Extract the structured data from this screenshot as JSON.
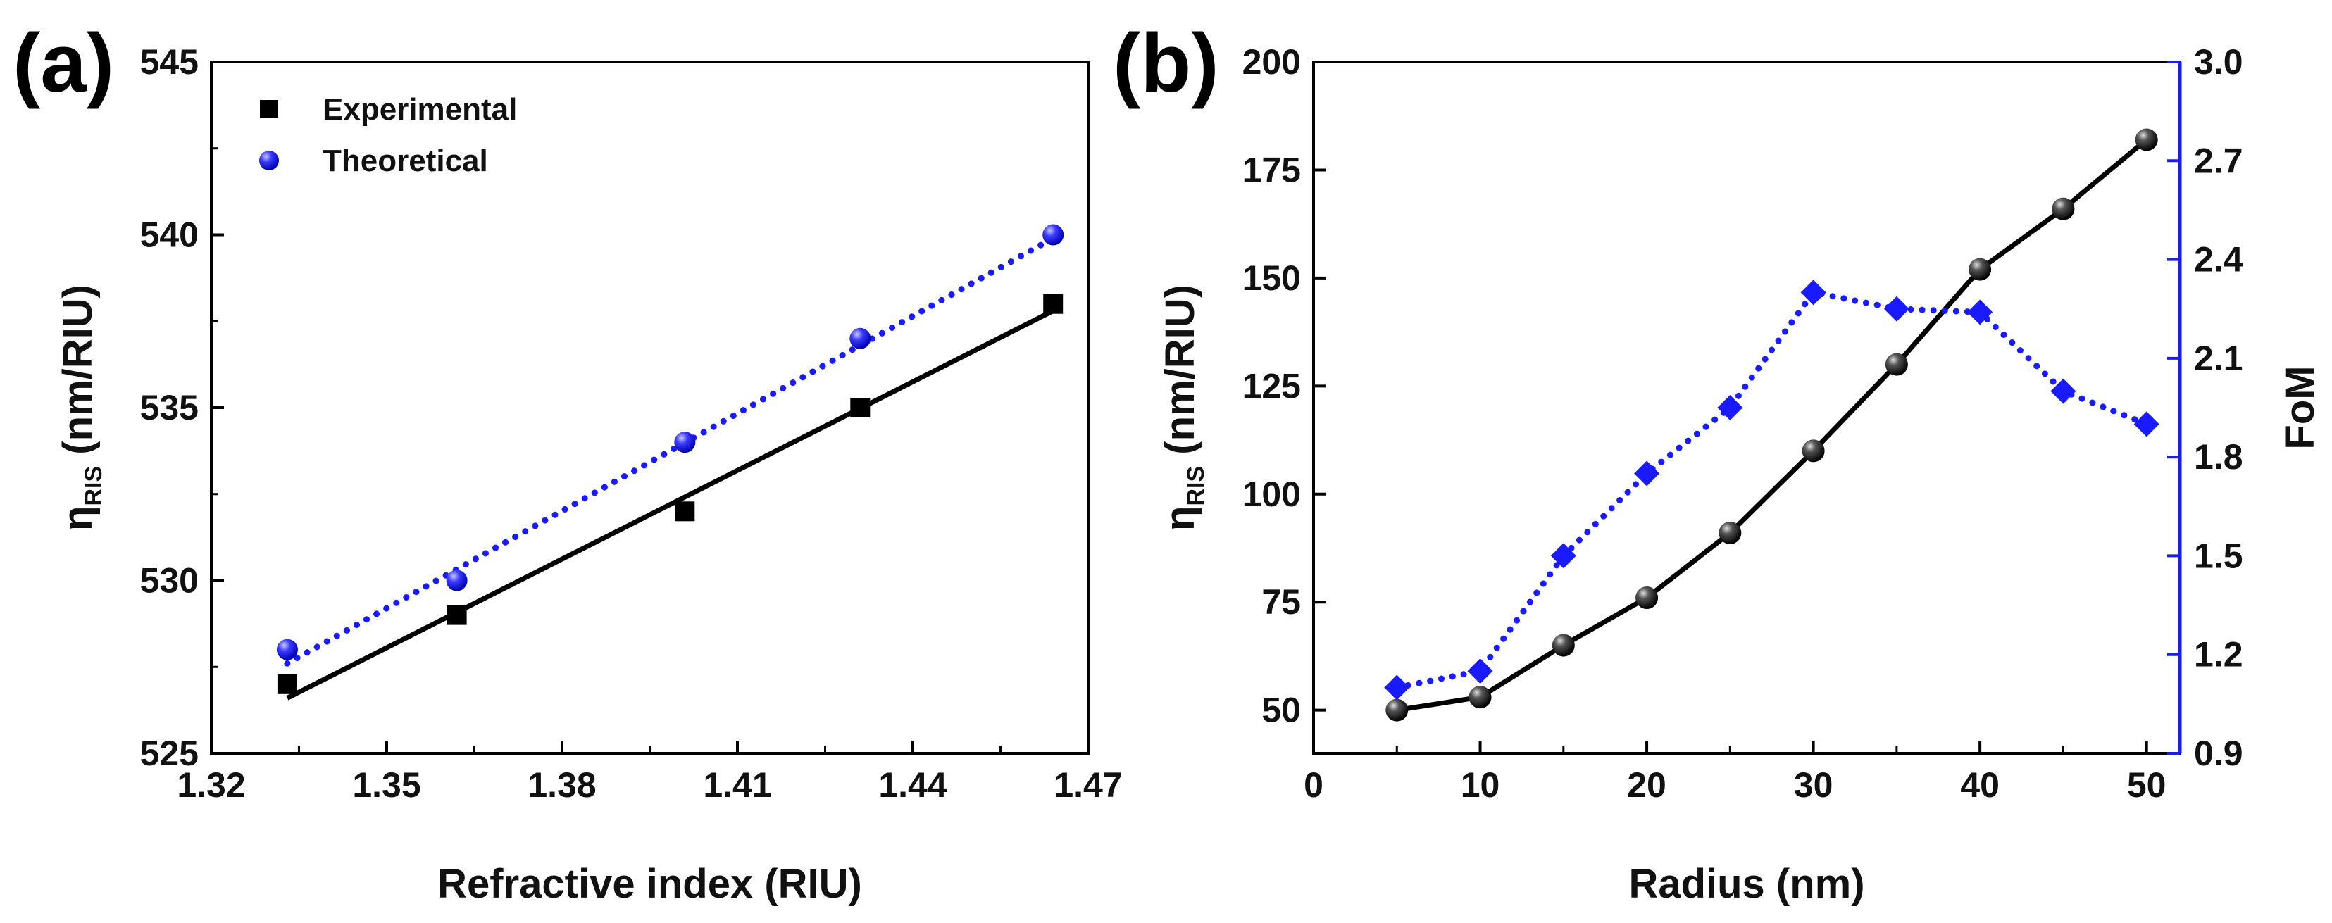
{
  "colors": {
    "black": "#000000",
    "blue": "#1a1aff",
    "axis_right": "#1a1aff"
  },
  "chart_data": [
    {
      "panel_label": "(a)",
      "type": "scatter",
      "title": "",
      "xlabel": "Refractive index (RIU)",
      "ylabel": {
        "main": "η",
        "sub": "RIS",
        "rest": " (nm/RIU)"
      },
      "xlim": [
        1.32,
        1.47
      ],
      "ylim": [
        525,
        545
      ],
      "xticks": [
        1.32,
        1.35,
        1.38,
        1.41,
        1.44,
        1.47
      ],
      "xtick_labels": [
        "1.32",
        "1.35",
        "1.38",
        "1.41",
        "1.44",
        "1.47"
      ],
      "yticks": [
        525,
        530,
        535,
        540,
        545
      ],
      "ytick_labels": [
        "525",
        "530",
        "535",
        "540",
        "545"
      ],
      "legend_position": "top-left",
      "series": [
        {
          "name": "Experimental",
          "marker": "square",
          "color": "#000000",
          "x": [
            1.333,
            1.362,
            1.401,
            1.431,
            1.464
          ],
          "y": [
            527,
            529,
            532,
            535,
            538
          ],
          "fit": {
            "style": "solid",
            "x": [
              1.333,
              1.464
            ],
            "y": [
              526.6,
              537.8
            ]
          }
        },
        {
          "name": "Theoretical",
          "marker": "circle",
          "color": "#1a1aff",
          "x": [
            1.333,
            1.362,
            1.401,
            1.431,
            1.464
          ],
          "y": [
            528,
            530,
            534,
            537,
            540
          ],
          "fit": {
            "style": "dotted",
            "x": [
              1.333,
              1.464
            ],
            "y": [
              527.6,
              539.9
            ]
          }
        }
      ]
    },
    {
      "panel_label": "(b)",
      "type": "line",
      "title": "",
      "xlabel": "Radius (nm)",
      "ylabel": {
        "main": "η",
        "sub": "RIS",
        "rest": " (nm/RIU)"
      },
      "ylabel_right": "FoM",
      "xlim": [
        0,
        52
      ],
      "ylim": [
        40,
        200
      ],
      "ylim_right": [
        0.9,
        3.0
      ],
      "xticks": [
        0,
        10,
        20,
        30,
        40,
        50
      ],
      "xtick_labels": [
        "0",
        "10",
        "20",
        "30",
        "40",
        "50"
      ],
      "yticks": [
        50,
        75,
        100,
        125,
        150,
        175,
        200
      ],
      "ytick_labels": [
        "50",
        "75",
        "100",
        "125",
        "150",
        "175",
        "200"
      ],
      "yticks_right": [
        0.9,
        1.2,
        1.5,
        1.8,
        2.1,
        2.4,
        2.7,
        3.0
      ],
      "ytick_labels_right": [
        "0.9",
        "1.2",
        "1.5",
        "1.8",
        "2.1",
        "2.4",
        "2.7",
        "3.0"
      ],
      "series": [
        {
          "name": "η_RIS",
          "axis": "left",
          "marker": "sphere",
          "line": "solid",
          "color": "#000000",
          "x": [
            5,
            10,
            15,
            20,
            25,
            30,
            35,
            40,
            45,
            50
          ],
          "y": [
            50,
            53,
            65,
            76,
            91,
            110,
            130,
            152,
            166,
            182
          ]
        },
        {
          "name": "FoM",
          "axis": "right",
          "marker": "diamond",
          "line": "dotted",
          "color": "#1a1aff",
          "x": [
            5,
            10,
            15,
            20,
            25,
            30,
            35,
            40,
            45,
            50
          ],
          "y": [
            1.1,
            1.15,
            1.5,
            1.75,
            1.95,
            2.3,
            2.25,
            2.24,
            2.0,
            1.9
          ]
        }
      ]
    }
  ]
}
